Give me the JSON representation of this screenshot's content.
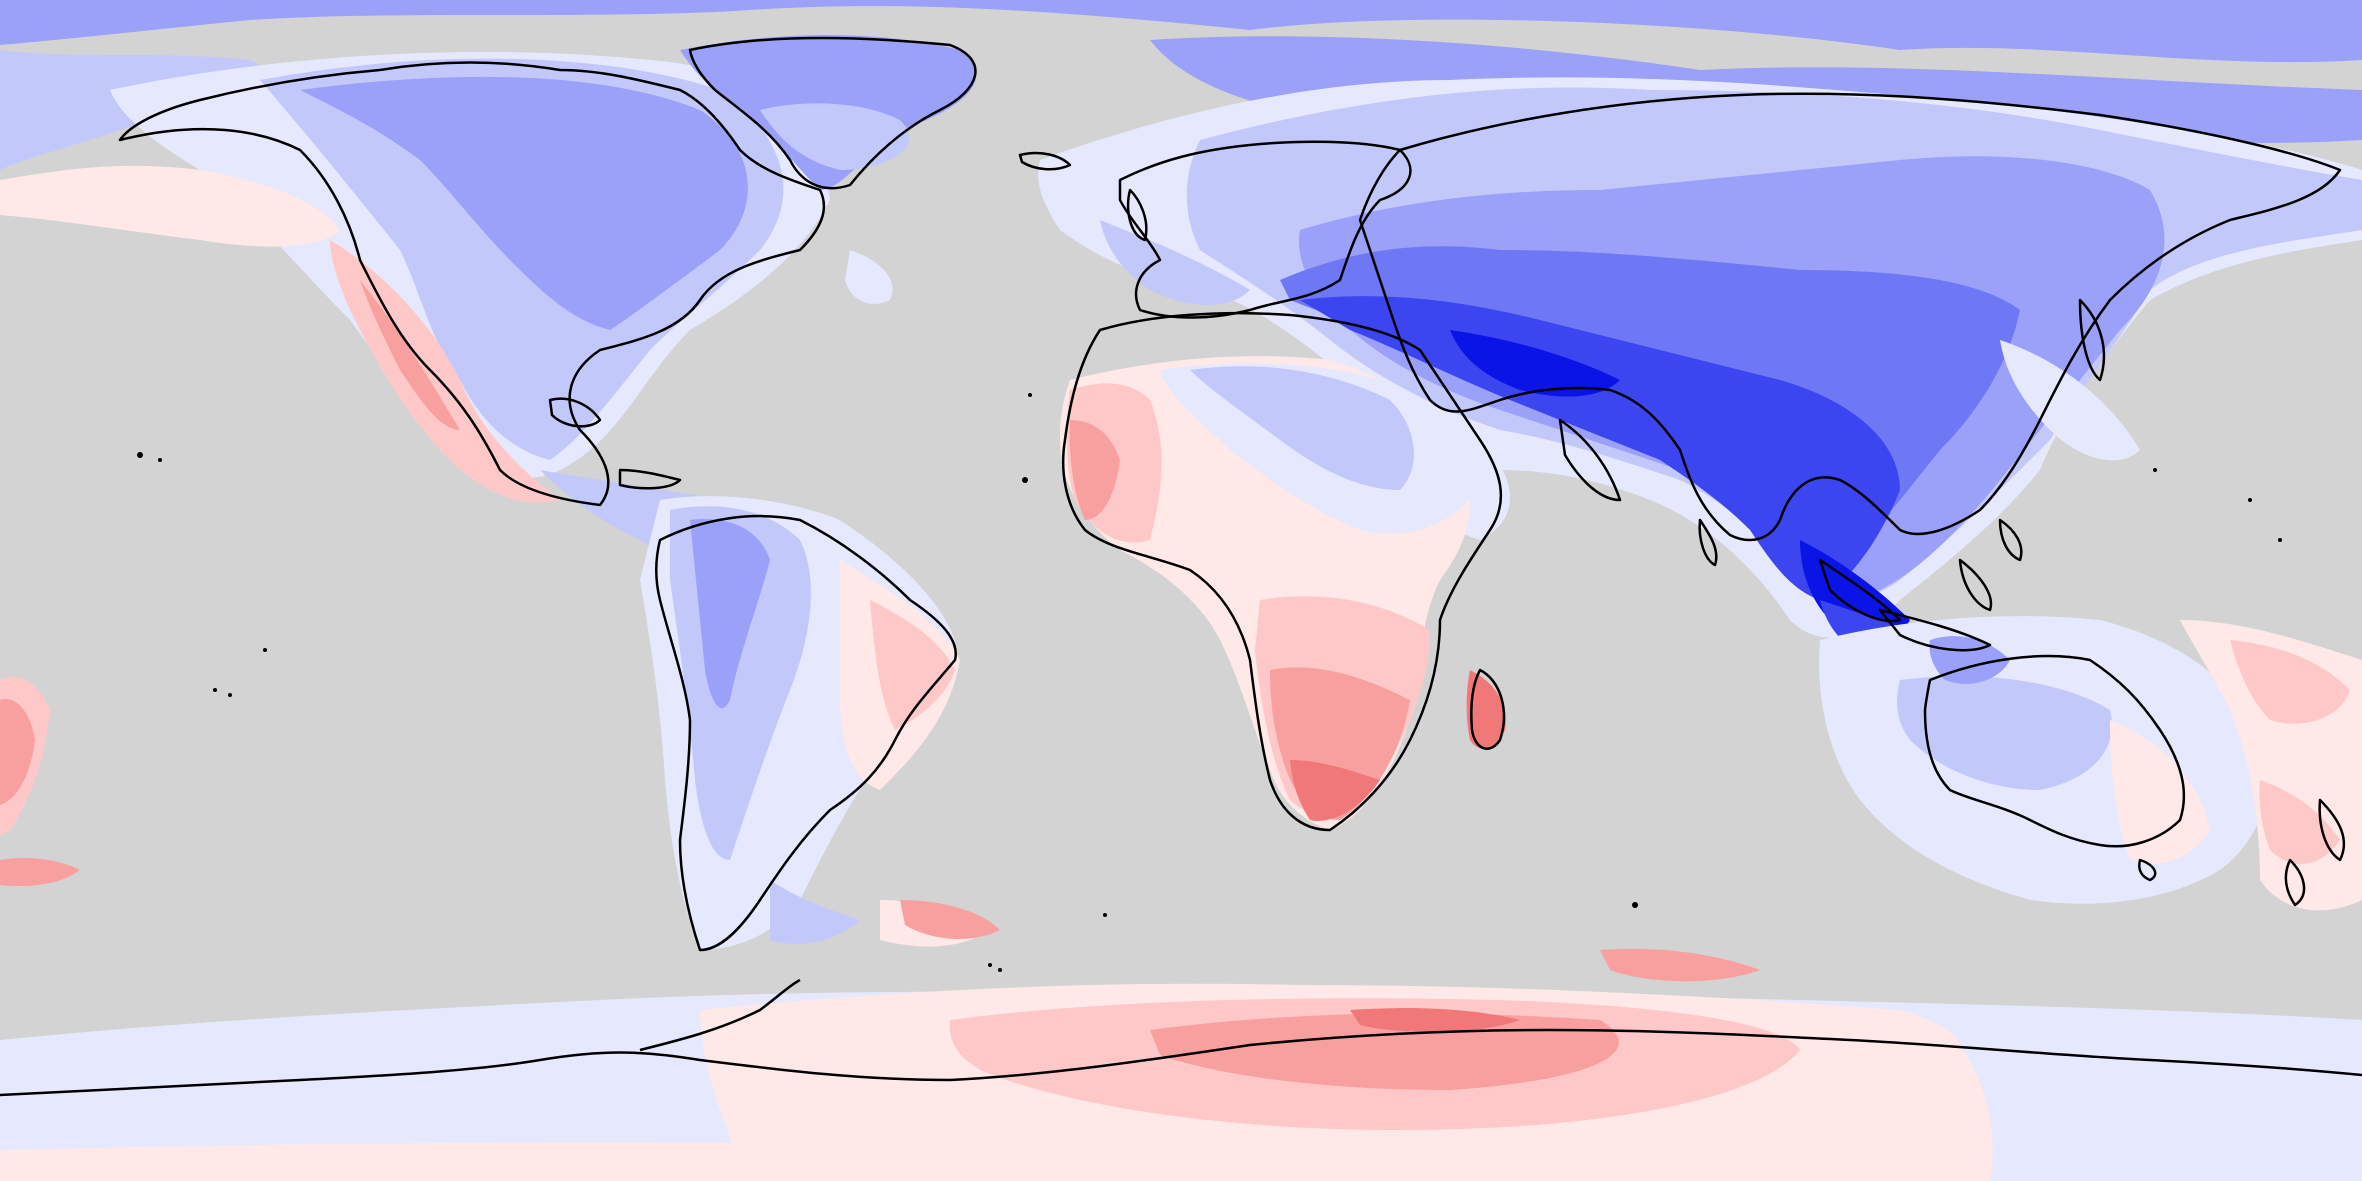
{
  "map": {
    "projection": "equirectangular",
    "extent": {
      "lon": [
        -180,
        180
      ],
      "lat": [
        -90,
        90
      ]
    },
    "background_color": "#d3d3d3",
    "coastline_color": "#000000",
    "anomaly_palette": {
      "blue_5": "#0a14e6",
      "blue_4": "#3c46f0",
      "blue_3": "#6e78f5",
      "blue_2": "#9ba0f8",
      "blue_1": "#c3c8fb",
      "blue_0": "#e6e8fd",
      "red_0": "#ffe8e8",
      "red_1": "#ffc8c8",
      "red_2": "#f8a0a0",
      "red_3": "#f07878"
    }
  }
}
